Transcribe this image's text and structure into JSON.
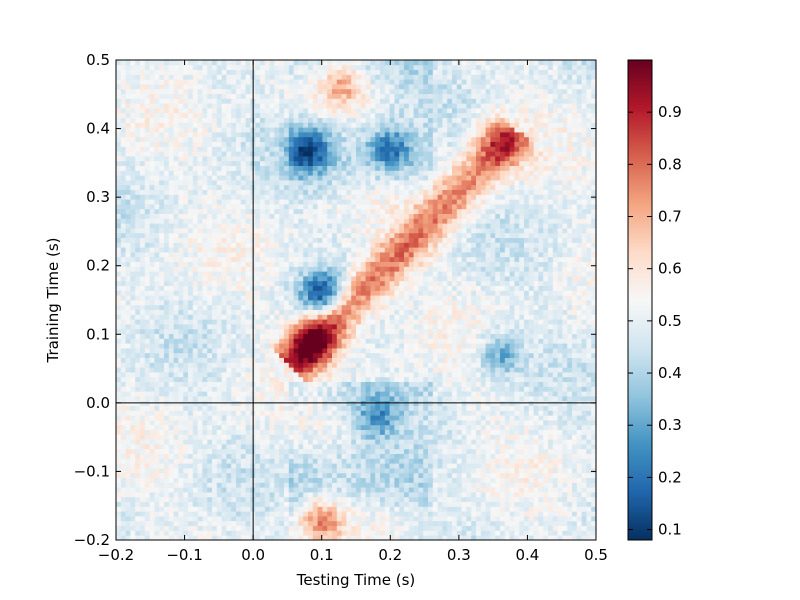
{
  "chart_data": {
    "type": "heatmap",
    "title": "",
    "xlabel": "Testing Time (s)",
    "ylabel": "Training Time (s)",
    "xlim": [
      -0.2,
      0.5
    ],
    "ylim": [
      -0.2,
      0.5
    ],
    "xticks": [
      -0.2,
      -0.1,
      0.0,
      0.1,
      0.2,
      0.3,
      0.4,
      0.5
    ],
    "xtick_labels": [
      "−0.2",
      "−0.1",
      "0.0",
      "0.1",
      "0.2",
      "0.3",
      "0.4",
      "0.5"
    ],
    "yticks": [
      -0.2,
      -0.1,
      0.0,
      0.1,
      0.2,
      0.3,
      0.4,
      0.5
    ],
    "ytick_labels": [
      "−0.2",
      "−0.1",
      "0.0",
      "0.1",
      "0.2",
      "0.3",
      "0.4",
      "0.5"
    ],
    "reference_lines": {
      "x": 0.0,
      "y": 0.0
    },
    "colormap": "RdBu_r",
    "colorbar": {
      "vmin": 0.08,
      "vmax": 1.0,
      "ticks": [
        0.1,
        0.2,
        0.3,
        0.4,
        0.5,
        0.6,
        0.7,
        0.8,
        0.9
      ],
      "tick_labels": [
        "0.1",
        "0.2",
        "0.3",
        "0.4",
        "0.5",
        "0.6",
        "0.7",
        "0.8",
        "0.9"
      ]
    },
    "grid": false,
    "features": [
      {
        "kind": "diagonal_band",
        "from": [
          0.06,
          0.06
        ],
        "to": [
          0.38,
          0.39
        ],
        "value": 0.85
      },
      {
        "kind": "peak",
        "x": 0.09,
        "y": 0.09,
        "value": 0.98
      },
      {
        "kind": "peak",
        "x": 0.36,
        "y": 0.38,
        "value": 0.82
      },
      {
        "kind": "blob",
        "x": 0.1,
        "y": -0.17,
        "value": 0.75
      },
      {
        "kind": "blob",
        "x": 0.13,
        "y": 0.46,
        "value": 0.7
      },
      {
        "kind": "blob",
        "x": 0.1,
        "y": 0.16,
        "value": 0.15
      },
      {
        "kind": "blob",
        "x": 0.08,
        "y": 0.37,
        "value": 0.18
      },
      {
        "kind": "blob",
        "x": 0.2,
        "y": 0.37,
        "value": 0.25
      },
      {
        "kind": "blob",
        "x": 0.18,
        "y": -0.02,
        "value": 0.28
      },
      {
        "kind": "blob",
        "x": 0.36,
        "y": 0.07,
        "value": 0.3
      }
    ]
  }
}
